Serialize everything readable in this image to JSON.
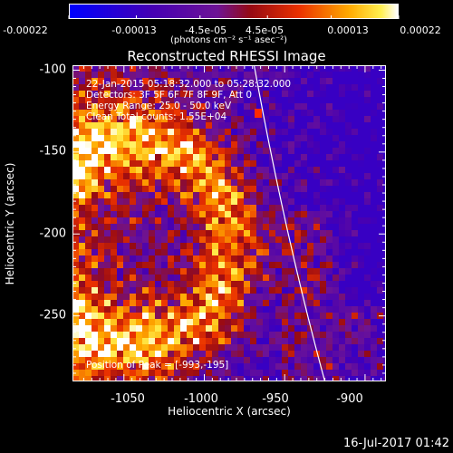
{
  "colorbar": {
    "ticks": [
      "-0.00022",
      "-0.00013",
      "-4.5e-05",
      "4.5e-05",
      "0.00013",
      "0.00022"
    ],
    "unit_label": "(photons cm⁻² s⁻¹ asec⁻²)"
  },
  "chart_data": {
    "type": "heatmap",
    "title": "Reconstructed RHESSI Image",
    "xlabel": "Heliocentric X (arcsec)",
    "ylabel": "Heliocentric Y (arcsec)",
    "xlim": [
      -1082,
      -887
    ],
    "ylim": [
      -290,
      -97
    ],
    "x_ticks": [
      -1050,
      -1000,
      -950,
      -900
    ],
    "y_ticks": [
      -100,
      -150,
      -200,
      -250
    ],
    "colormap": "blue-purple-red-yellow-white",
    "color_range": [
      -0.00022,
      0.00022
    ],
    "limb_curve": true,
    "annotations": [
      "22-Jan-2015 05:18:32.000 to 05:28:32.000",
      "Detectors: 3F 5F 6F 7F 8F 9F, Att 0",
      "Energy Range: 25.0 - 50.0 keV",
      "Clean      Total counts: 1.55E+04"
    ],
    "peak_label": "Position of Peak = [-993,-195]",
    "peak_position": [
      -993,
      -195
    ]
  },
  "footer": {
    "timestamp": "16-Jul-2017 01:42"
  }
}
